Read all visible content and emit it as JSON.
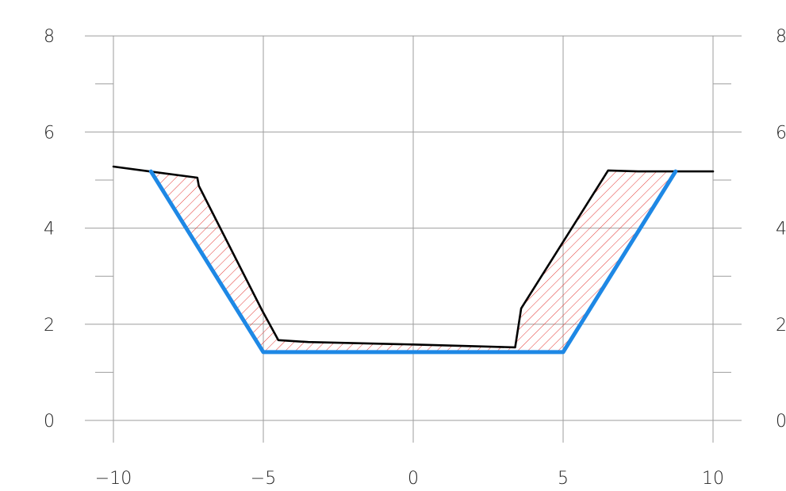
{
  "chart_data": {
    "type": "line",
    "title": "",
    "xlabel": "",
    "ylabel": "",
    "xlim": [
      -11,
      11
    ],
    "ylim": [
      0,
      8
    ],
    "grid": true,
    "xticks": [
      {
        "value": -10,
        "label": "−10"
      },
      {
        "value": -5,
        "label": "−5"
      },
      {
        "value": 0,
        "label": "0"
      },
      {
        "value": 5,
        "label": "5"
      },
      {
        "value": 10,
        "label": "10"
      }
    ],
    "yticks": [
      {
        "value": 0,
        "label": "0"
      },
      {
        "value": 2,
        "label": "2"
      },
      {
        "value": 4,
        "label": "4"
      },
      {
        "value": 6,
        "label": "6"
      },
      {
        "value": 8,
        "label": "8"
      }
    ],
    "yminor": [
      1,
      3,
      5,
      7
    ],
    "series": [
      {
        "key": "ground",
        "color": "#000000",
        "points": [
          {
            "x": -10,
            "y": 5.28
          },
          {
            "x": -8.8,
            "y": 5.18
          },
          {
            "x": -7.2,
            "y": 5.05
          },
          {
            "x": -7.15,
            "y": 4.88
          },
          {
            "x": -5.05,
            "y": 2.3
          },
          {
            "x": -4.5,
            "y": 1.67
          },
          {
            "x": -3.5,
            "y": 1.63
          },
          {
            "x": 0,
            "y": 1.58
          },
          {
            "x": 3.4,
            "y": 1.52
          },
          {
            "x": 3.6,
            "y": 2.33
          },
          {
            "x": 6.5,
            "y": 5.2
          },
          {
            "x": 7.5,
            "y": 5.18
          },
          {
            "x": 8.7,
            "y": 5.18
          },
          {
            "x": 10,
            "y": 5.18
          }
        ]
      },
      {
        "key": "design",
        "color": "#1e88e5",
        "points": [
          {
            "x": -8.75,
            "y": 5.18
          },
          {
            "x": -5,
            "y": 1.42
          },
          {
            "x": 5,
            "y": 1.42
          },
          {
            "x": 8.75,
            "y": 5.18
          }
        ]
      }
    ],
    "fill": {
      "key": "cut-area",
      "color": "#e53935",
      "pattern": "diagonal-hatch",
      "between": [
        "ground",
        "design"
      ],
      "x_range": [
        -8.75,
        8.75
      ]
    }
  }
}
